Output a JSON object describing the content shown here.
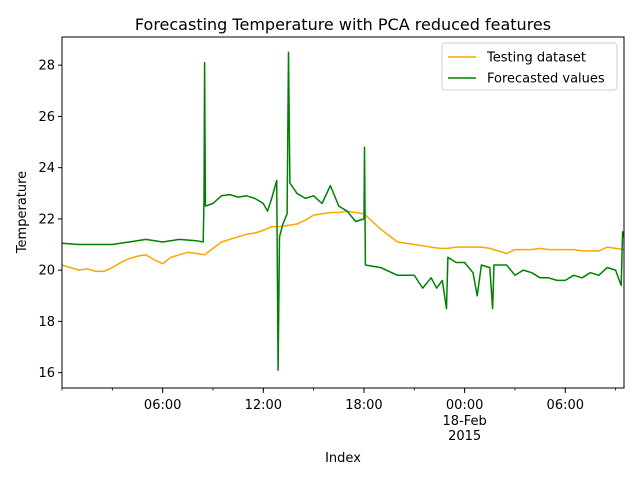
{
  "chart_data": {
    "type": "line",
    "title": "Forecasting Temperature with PCA reduced features",
    "xlabel": "Index",
    "ylabel": "Temperature",
    "ylim": [
      15.4,
      29.1
    ],
    "yticks": [
      16,
      18,
      20,
      22,
      24,
      26,
      28
    ],
    "xlim": [
      "2015-02-17 00:00",
      "2015-02-18 09:30"
    ],
    "xticks": [
      {
        "x": "2015-02-17 06:00",
        "label": "06:00"
      },
      {
        "x": "2015-02-17 12:00",
        "label": "12:00"
      },
      {
        "x": "2015-02-17 18:00",
        "label": "18:00"
      },
      {
        "x": "2015-02-18 00:00",
        "label": "00:00",
        "sublabels": [
          "18-Feb",
          "2015"
        ]
      },
      {
        "x": "2015-02-18 06:00",
        "label": "06:00"
      }
    ],
    "legend": {
      "position": "top-right"
    },
    "series": [
      {
        "name": "Testing dataset",
        "color": "#ffa500",
        "points": [
          [
            "2015-02-17 00:00",
            20.2
          ],
          [
            "2015-02-17 00:30",
            20.1
          ],
          [
            "2015-02-17 01:00",
            20.0
          ],
          [
            "2015-02-17 01:30",
            20.05
          ],
          [
            "2015-02-17 02:00",
            19.95
          ],
          [
            "2015-02-17 02:30",
            19.95
          ],
          [
            "2015-02-17 03:00",
            20.1
          ],
          [
            "2015-02-17 03:30",
            20.3
          ],
          [
            "2015-02-17 04:00",
            20.45
          ],
          [
            "2015-02-17 04:30",
            20.55
          ],
          [
            "2015-02-17 05:00",
            20.6
          ],
          [
            "2015-02-17 05:30",
            20.4
          ],
          [
            "2015-02-17 06:00",
            20.25
          ],
          [
            "2015-02-17 06:30",
            20.5
          ],
          [
            "2015-02-17 07:00",
            20.6
          ],
          [
            "2015-02-17 07:30",
            20.7
          ],
          [
            "2015-02-17 08:00",
            20.65
          ],
          [
            "2015-02-17 08:30",
            20.6
          ],
          [
            "2015-02-17 09:00",
            20.85
          ],
          [
            "2015-02-17 09:30",
            21.1
          ],
          [
            "2015-02-17 10:00",
            21.2
          ],
          [
            "2015-02-17 10:30",
            21.3
          ],
          [
            "2015-02-17 11:00",
            21.4
          ],
          [
            "2015-02-17 11:30",
            21.45
          ],
          [
            "2015-02-17 12:00",
            21.55
          ],
          [
            "2015-02-17 12:30",
            21.7
          ],
          [
            "2015-02-17 13:00",
            21.7
          ],
          [
            "2015-02-17 13:30",
            21.75
          ],
          [
            "2015-02-17 14:00",
            21.8
          ],
          [
            "2015-02-17 14:30",
            21.95
          ],
          [
            "2015-02-17 15:00",
            22.15
          ],
          [
            "2015-02-17 15:30",
            22.2
          ],
          [
            "2015-02-17 16:00",
            22.25
          ],
          [
            "2015-02-17 16:30",
            22.25
          ],
          [
            "2015-02-17 17:00",
            22.3
          ],
          [
            "2015-02-17 17:30",
            22.25
          ],
          [
            "2015-02-17 18:00",
            22.2
          ],
          [
            "2015-02-17 18:30",
            21.9
          ],
          [
            "2015-02-17 19:00",
            21.6
          ],
          [
            "2015-02-17 19:30",
            21.35
          ],
          [
            "2015-02-17 20:00",
            21.1
          ],
          [
            "2015-02-17 20:30",
            21.05
          ],
          [
            "2015-02-17 21:00",
            21.0
          ],
          [
            "2015-02-17 21:30",
            20.95
          ],
          [
            "2015-02-17 22:00",
            20.9
          ],
          [
            "2015-02-17 22:30",
            20.85
          ],
          [
            "2015-02-17 23:00",
            20.85
          ],
          [
            "2015-02-17 23:30",
            20.9
          ],
          [
            "2015-02-18 00:00",
            20.9
          ],
          [
            "2015-02-18 00:30",
            20.9
          ],
          [
            "2015-02-18 01:00",
            20.9
          ],
          [
            "2015-02-18 01:30",
            20.85
          ],
          [
            "2015-02-18 02:00",
            20.75
          ],
          [
            "2015-02-18 02:30",
            20.65
          ],
          [
            "2015-02-18 03:00",
            20.8
          ],
          [
            "2015-02-18 03:30",
            20.8
          ],
          [
            "2015-02-18 04:00",
            20.8
          ],
          [
            "2015-02-18 04:30",
            20.85
          ],
          [
            "2015-02-18 05:00",
            20.8
          ],
          [
            "2015-02-18 05:30",
            20.8
          ],
          [
            "2015-02-18 06:00",
            20.8
          ],
          [
            "2015-02-18 06:30",
            20.8
          ],
          [
            "2015-02-18 07:00",
            20.75
          ],
          [
            "2015-02-18 07:30",
            20.75
          ],
          [
            "2015-02-18 08:00",
            20.75
          ],
          [
            "2015-02-18 08:30",
            20.9
          ],
          [
            "2015-02-18 09:00",
            20.85
          ],
          [
            "2015-02-18 09:30",
            20.8
          ]
        ]
      },
      {
        "name": "Forecasted values",
        "color": "#008000",
        "points": [
          [
            "2015-02-17 00:00",
            21.05
          ],
          [
            "2015-02-17 01:00",
            21.0
          ],
          [
            "2015-02-17 02:00",
            21.0
          ],
          [
            "2015-02-17 03:00",
            21.0
          ],
          [
            "2015-02-17 04:00",
            21.1
          ],
          [
            "2015-02-17 05:00",
            21.2
          ],
          [
            "2015-02-17 06:00",
            21.1
          ],
          [
            "2015-02-17 07:00",
            21.2
          ],
          [
            "2015-02-17 08:00",
            21.15
          ],
          [
            "2015-02-17 08:25",
            21.1
          ],
          [
            "2015-02-17 08:28",
            22.7
          ],
          [
            "2015-02-17 08:30",
            28.1
          ],
          [
            "2015-02-17 08:33",
            22.5
          ],
          [
            "2015-02-17 09:00",
            22.6
          ],
          [
            "2015-02-17 09:30",
            22.9
          ],
          [
            "2015-02-17 10:00",
            22.95
          ],
          [
            "2015-02-17 10:30",
            22.85
          ],
          [
            "2015-02-17 11:00",
            22.9
          ],
          [
            "2015-02-17 11:30",
            22.8
          ],
          [
            "2015-02-17 12:00",
            22.6
          ],
          [
            "2015-02-17 12:15",
            22.3
          ],
          [
            "2015-02-17 12:30",
            22.8
          ],
          [
            "2015-02-17 12:48",
            23.5
          ],
          [
            "2015-02-17 12:53",
            16.1
          ],
          [
            "2015-02-17 12:58",
            21.3
          ],
          [
            "2015-02-17 13:10",
            21.8
          ],
          [
            "2015-02-17 13:25",
            22.2
          ],
          [
            "2015-02-17 13:30",
            28.5
          ],
          [
            "2015-02-17 13:35",
            23.4
          ],
          [
            "2015-02-17 14:00",
            23.0
          ],
          [
            "2015-02-17 14:30",
            22.8
          ],
          [
            "2015-02-17 15:00",
            22.9
          ],
          [
            "2015-02-17 15:30",
            22.6
          ],
          [
            "2015-02-17 16:00",
            23.3
          ],
          [
            "2015-02-17 16:30",
            22.5
          ],
          [
            "2015-02-17 17:00",
            22.3
          ],
          [
            "2015-02-17 17:30",
            21.9
          ],
          [
            "2015-02-17 18:00",
            22.0
          ],
          [
            "2015-02-17 18:02",
            24.8
          ],
          [
            "2015-02-17 18:05",
            20.2
          ],
          [
            "2015-02-17 19:00",
            20.1
          ],
          [
            "2015-02-17 20:00",
            19.8
          ],
          [
            "2015-02-17 21:00",
            19.8
          ],
          [
            "2015-02-17 21:30",
            19.3
          ],
          [
            "2015-02-17 22:00",
            19.7
          ],
          [
            "2015-02-17 22:20",
            19.3
          ],
          [
            "2015-02-17 22:40",
            19.6
          ],
          [
            "2015-02-17 22:55",
            18.5
          ],
          [
            "2015-02-17 23:00",
            20.5
          ],
          [
            "2015-02-17 23:30",
            20.3
          ],
          [
            "2015-02-18 00:00",
            20.3
          ],
          [
            "2015-02-18 00:30",
            19.9
          ],
          [
            "2015-02-18 00:45",
            19.0
          ],
          [
            "2015-02-18 01:00",
            20.2
          ],
          [
            "2015-02-18 01:30",
            20.1
          ],
          [
            "2015-02-18 01:40",
            18.5
          ],
          [
            "2015-02-18 01:45",
            20.2
          ],
          [
            "2015-02-18 02:30",
            20.2
          ],
          [
            "2015-02-18 03:00",
            19.8
          ],
          [
            "2015-02-18 03:30",
            20.0
          ],
          [
            "2015-02-18 04:00",
            19.9
          ],
          [
            "2015-02-18 04:30",
            19.7
          ],
          [
            "2015-02-18 05:00",
            19.7
          ],
          [
            "2015-02-18 05:30",
            19.6
          ],
          [
            "2015-02-18 06:00",
            19.6
          ],
          [
            "2015-02-18 06:30",
            19.8
          ],
          [
            "2015-02-18 07:00",
            19.7
          ],
          [
            "2015-02-18 07:30",
            19.9
          ],
          [
            "2015-02-18 08:00",
            19.8
          ],
          [
            "2015-02-18 08:30",
            20.1
          ],
          [
            "2015-02-18 09:00",
            20.0
          ],
          [
            "2015-02-18 09:20",
            19.4
          ],
          [
            "2015-02-18 09:25",
            21.5
          ],
          [
            "2015-02-18 09:30",
            21.3
          ]
        ]
      }
    ]
  }
}
